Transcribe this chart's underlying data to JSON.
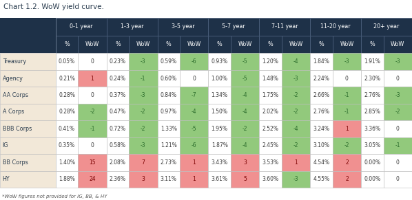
{
  "title": "Chart 1.2. WoW yield curve.",
  "footnote": "*WoW figures not provided for IG, BB, & HY",
  "col_groups": [
    "0-1 year",
    "1-3 year",
    "3-5 year",
    "5-7 year",
    "7-11 year",
    "11-20 year",
    "20+ year"
  ],
  "rows": [
    "Treasury",
    "Agency",
    "AA Corps",
    "A Corps",
    "BBB Corps",
    "IG",
    "BB Corps",
    "HY"
  ],
  "data": [
    [
      "0.05%",
      "0",
      "0.23%",
      "-3",
      "0.59%",
      "-6",
      "0.93%",
      "-5",
      "1.20%",
      "-4",
      "1.84%",
      "-3",
      "1.91%",
      "-3"
    ],
    [
      "0.21%",
      "1",
      "0.24%",
      "-1",
      "0.60%",
      "0",
      "1.00%",
      "-5",
      "1.48%",
      "-3",
      "2.24%",
      "0",
      "2.30%",
      "0"
    ],
    [
      "0.28%",
      "0",
      "0.37%",
      "-3",
      "0.84%",
      "-7",
      "1.34%",
      "-4",
      "1.75%",
      "-2",
      "2.66%",
      "-1",
      "2.76%",
      "-3"
    ],
    [
      "0.28%",
      "-2",
      "0.47%",
      "-2",
      "0.97%",
      "-4",
      "1.50%",
      "-4",
      "2.02%",
      "-2",
      "2.76%",
      "-1",
      "2.85%",
      "-2"
    ],
    [
      "0.41%",
      "-1",
      "0.72%",
      "-2",
      "1.33%",
      "-5",
      "1.95%",
      "-2",
      "2.52%",
      "-4",
      "3.24%",
      "1",
      "3.36%",
      "0"
    ],
    [
      "0.35%",
      "0",
      "0.58%",
      "-3",
      "1.21%",
      "-6",
      "1.87%",
      "-4",
      "2.45%",
      "-2",
      "3.10%",
      "-2",
      "3.05%",
      "-1"
    ],
    [
      "1.40%",
      "15",
      "2.08%",
      "7",
      "2.73%",
      "1",
      "3.43%",
      "3",
      "3.53%",
      "1",
      "4.54%",
      "2",
      "0.00%",
      "0"
    ],
    [
      "1.88%",
      "24",
      "2.36%",
      "3",
      "3.11%",
      "1",
      "3.61%",
      "5",
      "3.60%",
      "-3",
      "4.55%",
      "2",
      "0.00%",
      "0"
    ]
  ],
  "header_bg": "#1e3148",
  "header_fg": "#ffffff",
  "row_label_bg": "#f2e8d8",
  "row_label_fg": "#2c3e50",
  "cell_bg_default": "#ffffff",
  "cell_bg_green": "#92c97c",
  "cell_bg_red": "#f09090",
  "cell_fg_green": "#2d6e2d",
  "cell_fg_red": "#7a0000",
  "cell_fg_default": "#3a3a3a",
  "title_color": "#2c3e50",
  "grid_color": "#bbbbbb",
  "figsize": [
    5.98,
    2.91
  ],
  "dpi": 100
}
